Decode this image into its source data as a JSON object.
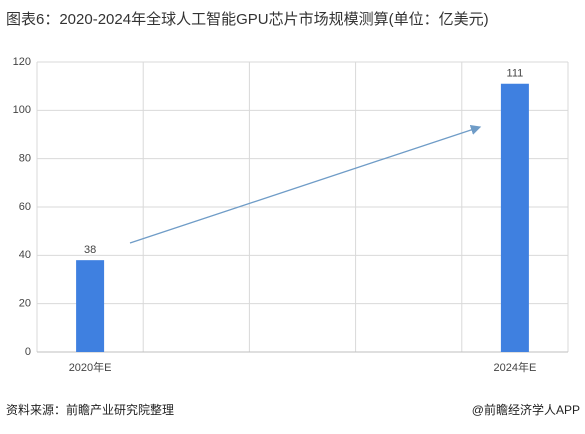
{
  "chart_data": {
    "type": "bar",
    "title": "图表6：2020-2024年全球人工智能GPU芯片市场规模测算(单位：亿美元)",
    "categories": [
      "2020年E",
      null,
      null,
      null,
      "2024年E"
    ],
    "values": [
      38,
      null,
      null,
      null,
      111
    ],
    "color": "#3f80e0",
    "ylim": [
      0,
      120
    ],
    "yticks": [
      0,
      20,
      40,
      60,
      80,
      100,
      120
    ],
    "grid": true,
    "source": "资料来源：前瞻产业研究院整理",
    "credit": "@前瞻经济学人APP"
  }
}
